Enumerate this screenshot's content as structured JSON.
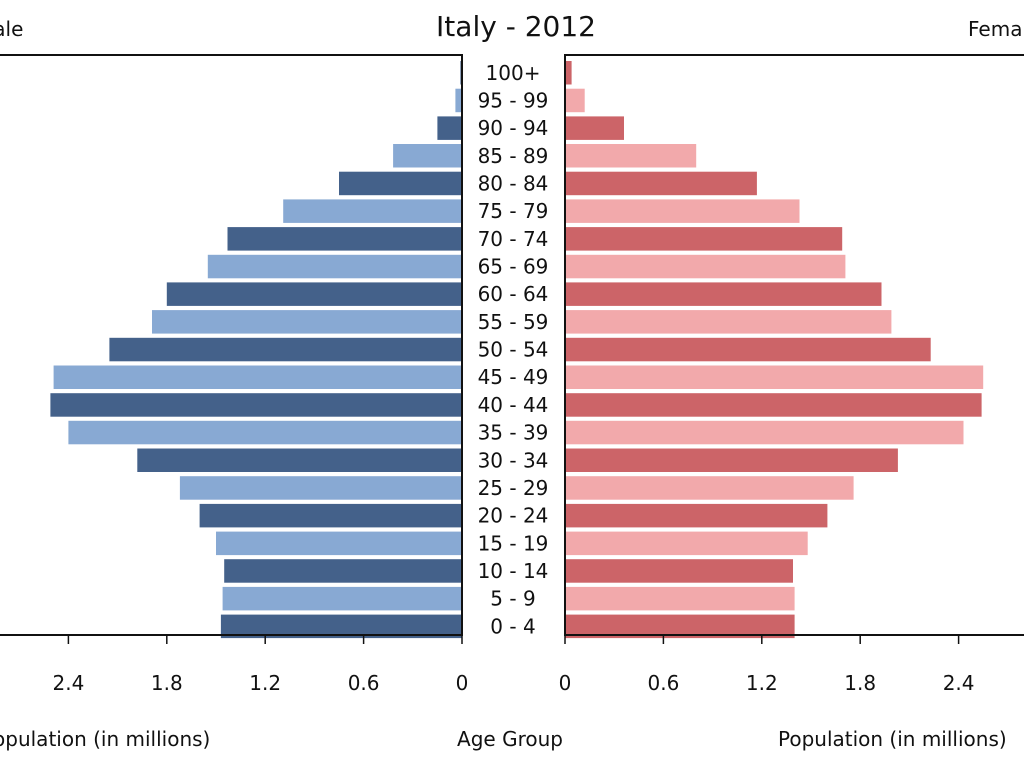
{
  "title": "Italy - 2012",
  "left_header": "Male",
  "right_header": "Female",
  "colors": {
    "male_dark": "#44618a",
    "male_light": "#88a9d3",
    "female_dark": "#cc6468",
    "female_light": "#f2a9ab"
  },
  "chart_data": {
    "type": "bar",
    "subtype": "population-pyramid",
    "title": "Italy - 2012",
    "categories": [
      "0 - 4",
      "5 - 9",
      "10 - 14",
      "15 - 19",
      "20 - 24",
      "25 - 29",
      "30 - 34",
      "35 - 39",
      "40 - 44",
      "45 - 49",
      "50 - 54",
      "55 - 59",
      "60 - 64",
      "65 - 69",
      "70 - 74",
      "75 - 79",
      "80 - 84",
      "85 - 89",
      "90 - 94",
      "95 - 99",
      "100+"
    ],
    "series": [
      {
        "name": "Male",
        "values": [
          1.47,
          1.46,
          1.45,
          1.5,
          1.6,
          1.72,
          1.98,
          2.4,
          2.51,
          2.49,
          2.15,
          1.89,
          1.8,
          1.55,
          1.43,
          1.09,
          0.75,
          0.42,
          0.15,
          0.04,
          0.01
        ]
      },
      {
        "name": "Female",
        "values": [
          1.4,
          1.4,
          1.39,
          1.48,
          1.6,
          1.76,
          2.03,
          2.43,
          2.54,
          2.55,
          2.23,
          1.99,
          1.93,
          1.71,
          1.69,
          1.43,
          1.17,
          0.8,
          0.36,
          0.12,
          0.04
        ]
      }
    ],
    "xlabel": "Population (in millions)",
    "center_label": "Age Group",
    "x_ticks": [
      0,
      0.6,
      1.2,
      1.8,
      2.4
    ],
    "x_tick_labels": [
      "0",
      "0.6",
      "1.2",
      "1.8",
      "2.4"
    ],
    "xlim": [
      0,
      2.82
    ],
    "grid": false,
    "legend": "none"
  }
}
